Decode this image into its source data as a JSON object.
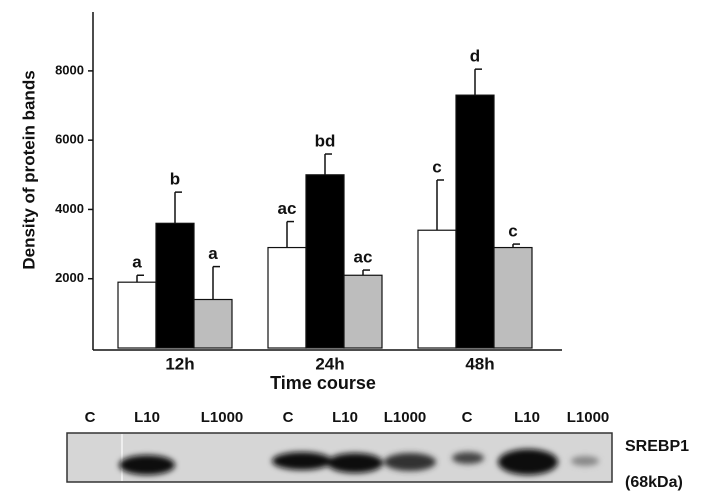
{
  "chart_data": {
    "type": "bar",
    "y_label": "Density of protein bands",
    "x_label": "Time course",
    "categories": [
      "12h",
      "24h",
      "48h"
    ],
    "series": [
      {
        "color": "#ffffff",
        "values": [
          1900,
          2900,
          3400
        ],
        "errors": [
          200,
          750,
          1450
        ],
        "letters": [
          "a",
          "ac",
          "c"
        ]
      },
      {
        "color": "#000000",
        "values": [
          3600,
          5000,
          7300
        ],
        "errors": [
          900,
          600,
          750
        ],
        "letters": [
          "b",
          "bd",
          "d"
        ]
      },
      {
        "color": "#bdbdbd",
        "values": [
          1400,
          2100,
          2900
        ],
        "errors": [
          950,
          150,
          100
        ],
        "letters": [
          "a",
          "ac",
          "c"
        ]
      }
    ],
    "ylim": [
      0,
      9700
    ],
    "yticks": [
      2000,
      4000,
      6000,
      8000
    ],
    "grid": false
  },
  "blot": {
    "lanes": [
      "C",
      "L10",
      "L1000",
      "C",
      "L10",
      "L1000",
      "C",
      "L10",
      "L1000"
    ],
    "protein": "SREBP1",
    "size": "(68kDa)"
  }
}
